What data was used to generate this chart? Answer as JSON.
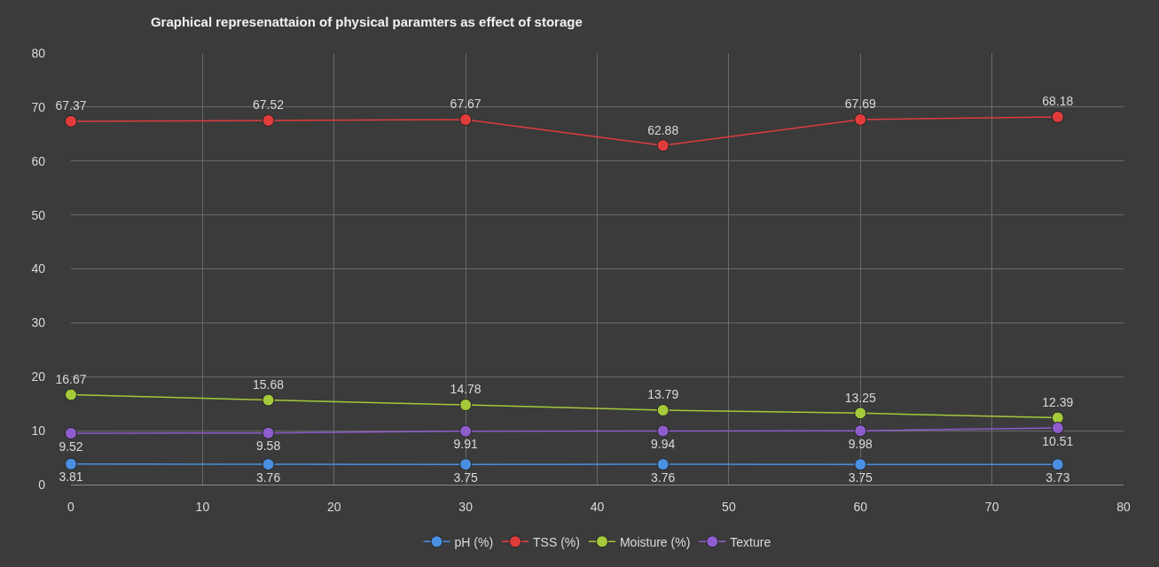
{
  "chart_data": {
    "type": "line",
    "title": "Graphical represenattaion of physical paramters as effect of storage",
    "x": [
      0,
      15,
      30,
      45,
      60,
      75
    ],
    "series": [
      {
        "name": "pH (%)",
        "color": "#4a8fe0",
        "values": [
          3.81,
          3.76,
          3.75,
          3.76,
          3.75,
          3.73
        ]
      },
      {
        "name": "TSS (%)",
        "color": "#e03c3c",
        "values": [
          67.37,
          67.52,
          67.67,
          62.88,
          67.69,
          68.18
        ]
      },
      {
        "name": "Moisture (%)",
        "color": "#a4c93a",
        "values": [
          16.67,
          15.68,
          14.78,
          13.79,
          13.25,
          12.39
        ]
      },
      {
        "name": "Texture",
        "color": "#8e5ccc",
        "values": [
          9.52,
          9.58,
          9.91,
          9.94,
          9.98,
          10.51
        ]
      }
    ],
    "xlim": [
      0,
      80
    ],
    "xticks": [
      0,
      10,
      20,
      30,
      40,
      50,
      60,
      70,
      80
    ],
    "ylim": [
      0,
      80
    ],
    "yticks": [
      0,
      10,
      20,
      30,
      40,
      50,
      60,
      70,
      80
    ],
    "grid": true,
    "legend": "bottom",
    "marker": "circle",
    "line_style": "solid",
    "data_labels": true
  }
}
